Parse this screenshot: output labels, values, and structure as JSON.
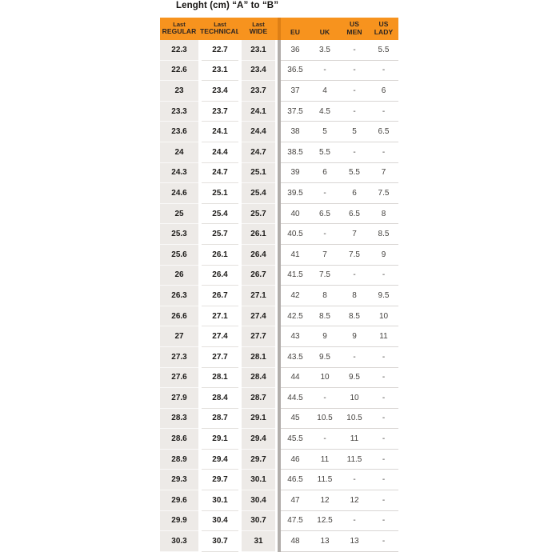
{
  "title": "Lenght (cm) “A” to “B”",
  "columns": [
    {
      "line1": "Last",
      "line2": "REGULAR"
    },
    {
      "line1": "Last",
      "line2": "TECHNICAL"
    },
    {
      "line1": "Last",
      "line2": "WIDE"
    },
    {
      "line1": "",
      "line2": "EU"
    },
    {
      "line1": "",
      "line2": "UK"
    },
    {
      "line1": "US",
      "line2": "MEN"
    },
    {
      "line1": "US",
      "line2": "LADY"
    }
  ],
  "colors": {
    "header_bg": "#F7931E",
    "header_divider": "#DE7F15",
    "shaded_cell": "#EDEAE7",
    "row_line": "#D9D6D3",
    "section_divider": "#B2AEAB",
    "left_text": "#1D1B19",
    "right_text": "#45423F"
  },
  "chart_data": {
    "type": "table",
    "title": "Lenght (cm) “A” to “B”",
    "columns": [
      "Last REGULAR",
      "Last TECHNICAL",
      "Last WIDE",
      "EU",
      "UK",
      "US MEN",
      "US LADY"
    ],
    "rows": [
      [
        "22.3",
        "22.7",
        "23.1",
        "36",
        "3.5",
        "-",
        "5.5"
      ],
      [
        "22.6",
        "23.1",
        "23.4",
        "36.5",
        "-",
        "-",
        "-"
      ],
      [
        "23",
        "23.4",
        "23.7",
        "37",
        "4",
        "-",
        "6"
      ],
      [
        "23.3",
        "23.7",
        "24.1",
        "37.5",
        "4.5",
        "-",
        "-"
      ],
      [
        "23.6",
        "24.1",
        "24.4",
        "38",
        "5",
        "5",
        "6.5"
      ],
      [
        "24",
        "24.4",
        "24.7",
        "38.5",
        "5.5",
        "-",
        "-"
      ],
      [
        "24.3",
        "24.7",
        "25.1",
        "39",
        "6",
        "5.5",
        "7"
      ],
      [
        "24.6",
        "25.1",
        "25.4",
        "39.5",
        "-",
        "6",
        "7.5"
      ],
      [
        "25",
        "25.4",
        "25.7",
        "40",
        "6.5",
        "6.5",
        "8"
      ],
      [
        "25.3",
        "25.7",
        "26.1",
        "40.5",
        "-",
        "7",
        "8.5"
      ],
      [
        "25.6",
        "26.1",
        "26.4",
        "41",
        "7",
        "7.5",
        "9"
      ],
      [
        "26",
        "26.4",
        "26.7",
        "41.5",
        "7.5",
        "-",
        "-"
      ],
      [
        "26.3",
        "26.7",
        "27.1",
        "42",
        "8",
        "8",
        "9.5"
      ],
      [
        "26.6",
        "27.1",
        "27.4",
        "42.5",
        "8.5",
        "8.5",
        "10"
      ],
      [
        "27",
        "27.4",
        "27.7",
        "43",
        "9",
        "9",
        "11"
      ],
      [
        "27.3",
        "27.7",
        "28.1",
        "43.5",
        "9.5",
        "-",
        "-"
      ],
      [
        "27.6",
        "28.1",
        "28.4",
        "44",
        "10",
        "9.5",
        "-"
      ],
      [
        "27.9",
        "28.4",
        "28.7",
        "44.5",
        "-",
        "10",
        "-"
      ],
      [
        "28.3",
        "28.7",
        "29.1",
        "45",
        "10.5",
        "10.5",
        "-"
      ],
      [
        "28.6",
        "29.1",
        "29.4",
        "45.5",
        "-",
        "11",
        "-"
      ],
      [
        "28.9",
        "29.4",
        "29.7",
        "46",
        "11",
        "11.5",
        "-"
      ],
      [
        "29.3",
        "29.7",
        "30.1",
        "46.5",
        "11.5",
        "-",
        "-"
      ],
      [
        "29.6",
        "30.1",
        "30.4",
        "47",
        "12",
        "12",
        "-"
      ],
      [
        "29.9",
        "30.4",
        "30.7",
        "47.5",
        "12.5",
        "-",
        "-"
      ],
      [
        "30.3",
        "30.7",
        "31",
        "48",
        "13",
        "13",
        "-"
      ]
    ]
  }
}
